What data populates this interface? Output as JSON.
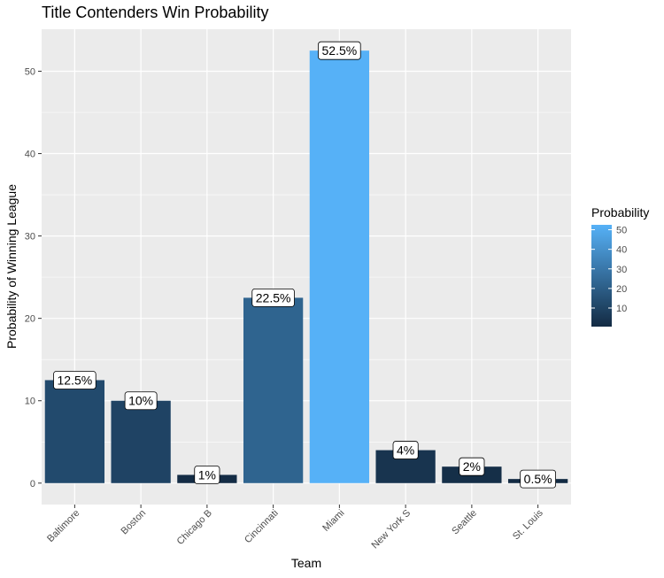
{
  "chart_data": {
    "type": "bar",
    "title": "Title Contenders Win Probability",
    "xlabel": "Team",
    "ylabel": "Probability of Winning League",
    "categories": [
      "Baltimore",
      "Boston",
      "Chicago B",
      "Cincinnati",
      "Miami",
      "New York S",
      "Seattle",
      "St. Louis"
    ],
    "values": [
      12.5,
      10,
      1,
      22.5,
      52.5,
      4,
      2,
      0.5
    ],
    "data_labels": [
      "12.5%",
      "10%",
      "1%",
      "22.5%",
      "52.5%",
      "4%",
      "2%",
      "0.5%"
    ],
    "ylim": [
      -2.6,
      55.1
    ],
    "yticks": [
      0,
      10,
      20,
      30,
      40,
      50
    ],
    "ytick_labels": [
      "0",
      "10",
      "20",
      "30",
      "40",
      "50"
    ],
    "grid": true,
    "legend": {
      "title": "Probability",
      "position": "right",
      "ticks": [
        10,
        20,
        30,
        40,
        50
      ],
      "tick_labels": [
        "10",
        "20",
        "30",
        "40",
        "50"
      ],
      "range": [
        0.5,
        52.5
      ],
      "low_color": "#132B43",
      "high_color": "#56B1F7"
    },
    "colors": {
      "panel": "#EBEBEB",
      "grid": "#FFFFFF",
      "low": "#132B43",
      "high": "#56B1F7"
    }
  }
}
